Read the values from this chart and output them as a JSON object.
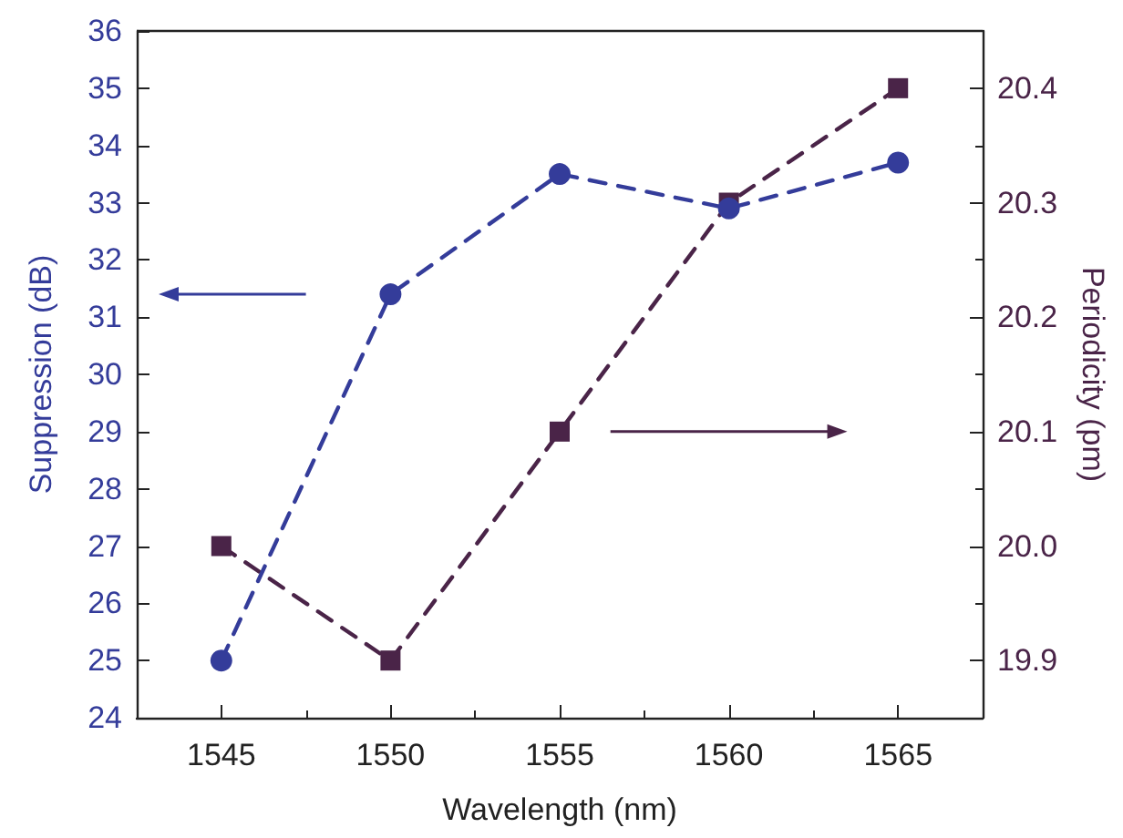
{
  "chart_data": {
    "type": "line",
    "xlabel": "Wavelength (nm)",
    "ylabel": "Suppression (dB)",
    "y2label": "Periodicity (pm)",
    "x": [
      1545,
      1550,
      1555,
      1560,
      1565
    ],
    "series": [
      {
        "color": "#343c9a",
        "marker": "circle",
        "values": [
          25,
          31.4,
          33.5,
          32.9,
          33.7
        ]
      },
      {
        "color": "#4a2448",
        "marker": "square",
        "axis": "y2",
        "values": [
          20.0,
          19.9,
          20.1,
          20.3,
          20.4
        ]
      }
    ],
    "xlim": [
      1542.5,
      1567.5
    ],
    "xticks": [
      1545,
      1550,
      1555,
      1560,
      1565
    ],
    "ylim": [
      24,
      36
    ],
    "yticks": [
      24,
      25,
      26,
      27,
      28,
      29,
      30,
      31,
      32,
      33,
      34,
      35,
      36
    ],
    "y2lim": [
      19.85,
      20.45
    ],
    "y2ticks": [
      {
        "value": 19.9,
        "label": "19.9"
      },
      {
        "value": 20.0,
        "label": "20.0"
      },
      {
        "value": 20.1,
        "label": "20.1"
      },
      {
        "value": 20.2,
        "label": "20.2"
      },
      {
        "value": 20.3,
        "label": "20.3"
      },
      {
        "value": 20.4,
        "label": "20.4"
      }
    ],
    "line_style": "dashed"
  }
}
